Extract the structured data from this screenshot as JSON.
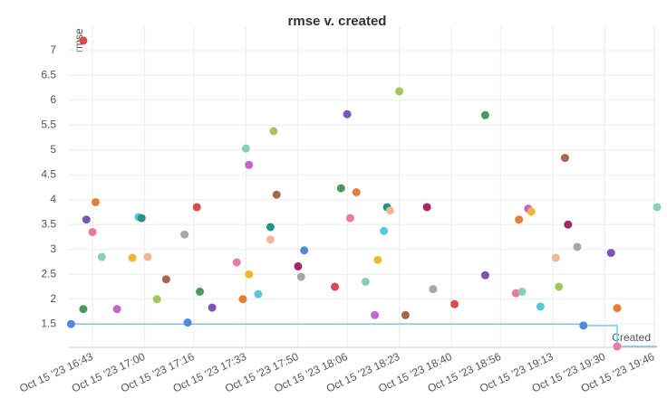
{
  "chart_data": {
    "type": "scatter",
    "title": "rmse v. created",
    "y_label": "rmse",
    "x_label": "Created",
    "x": [
      "2023-10-15T16:36",
      "2023-10-15T16:40",
      "2023-10-15T16:40",
      "2023-10-15T16:41",
      "2023-10-15T16:43",
      "2023-10-15T16:44",
      "2023-10-15T16:46",
      "2023-10-15T16:51",
      "2023-10-15T16:56",
      "2023-10-15T16:58",
      "2023-10-15T16:59",
      "2023-10-15T17:01",
      "2023-10-15T17:04",
      "2023-10-15T17:07",
      "2023-10-15T17:13",
      "2023-10-15T17:14",
      "2023-10-15T17:17",
      "2023-10-15T17:18",
      "2023-10-15T17:22",
      "2023-10-15T17:30",
      "2023-10-15T17:32",
      "2023-10-15T17:33",
      "2023-10-15T17:34",
      "2023-10-15T17:34",
      "2023-10-15T17:37",
      "2023-10-15T17:41",
      "2023-10-15T17:41",
      "2023-10-15T17:42",
      "2023-10-15T17:43",
      "2023-10-15T17:50",
      "2023-10-15T17:51",
      "2023-10-15T17:52",
      "2023-10-15T18:02",
      "2023-10-15T18:04",
      "2023-10-15T18:06",
      "2023-10-15T18:07",
      "2023-10-15T18:09",
      "2023-10-15T18:12",
      "2023-10-15T18:15",
      "2023-10-15T18:16",
      "2023-10-15T18:18",
      "2023-10-15T18:19",
      "2023-10-15T18:20",
      "2023-10-15T18:23",
      "2023-10-15T18:25",
      "2023-10-15T18:32",
      "2023-10-15T18:34",
      "2023-10-15T18:41",
      "2023-10-15T18:51",
      "2023-10-15T18:51",
      "2023-10-15T19:01",
      "2023-10-15T19:02",
      "2023-10-15T19:03",
      "2023-10-15T19:05",
      "2023-10-15T19:06",
      "2023-10-15T19:09",
      "2023-10-15T19:14",
      "2023-10-15T19:15",
      "2023-10-15T19:17",
      "2023-10-15T19:18",
      "2023-10-15T19:21",
      "2023-10-15T19:23",
      "2023-10-15T19:32",
      "2023-10-15T19:34",
      "2023-10-15T19:34",
      "2023-10-15T19:47"
    ],
    "values": [
      1.5,
      7.2,
      1.8,
      3.6,
      3.35,
      3.95,
      2.85,
      1.8,
      2.83,
      3.65,
      3.63,
      2.85,
      2.0,
      2.4,
      3.3,
      1.53,
      3.85,
      2.15,
      1.83,
      2.74,
      2.0,
      5.03,
      4.7,
      2.5,
      2.1,
      3.45,
      3.2,
      5.38,
      4.1,
      2.66,
      2.45,
      2.98,
      2.25,
      4.23,
      5.72,
      3.63,
      4.15,
      2.35,
      1.68,
      2.79,
      3.37,
      3.85,
      3.78,
      6.18,
      1.68,
      3.85,
      2.2,
      1.9,
      5.7,
      2.48,
      2.12,
      3.6,
      2.15,
      3.82,
      3.76,
      1.85,
      2.83,
      2.25,
      4.84,
      3.5,
      3.05,
      1.47,
      2.93,
      1.05,
      1.82,
      3.85
    ],
    "colors": [
      "#5387dd",
      "#da4c4c",
      "#479a5f",
      "#7d54b2",
      "#e87b9f",
      "#e17e3a",
      "#87cebf",
      "#c565c7",
      "#edb732",
      "#5bc5db",
      "#229487",
      "#f0b899",
      "#a0c75c",
      "#a46750",
      "#a1a9ad",
      "#5387dd",
      "#da4c4c",
      "#479a5f",
      "#7d54b2",
      "#e87b9f",
      "#e17e3a",
      "#87cebf",
      "#c565c7",
      "#edb732",
      "#5bc5db",
      "#229487",
      "#f0b899",
      "#a0c75c",
      "#a46750",
      "#a12864",
      "#a1a9ad",
      "#5387dd",
      "#da4c4c",
      "#479a5f",
      "#7d54b2",
      "#e87b9f",
      "#e17e3a",
      "#87cebf",
      "#c565c7",
      "#edb732",
      "#5bc5db",
      "#229487",
      "#f0b899",
      "#a0c75c",
      "#a46750",
      "#a12864",
      "#a1a9ad",
      "#da4c4c",
      "#479a5f",
      "#7d54b2",
      "#e87b9f",
      "#e17e3a",
      "#87cebf",
      "#c565c7",
      "#edb732",
      "#5bc5db",
      "#f0b899",
      "#a0c75c",
      "#a46750",
      "#a12864",
      "#a1a9ad",
      "#5387dd",
      "#7d54b2",
      "#e87b9f",
      "#e17e3a",
      "#87cebf"
    ],
    "line_color": "#7ec8e3",
    "xlim": [
      "2023-10-15T16:35",
      "2023-10-15T19:47"
    ],
    "xticks": [
      {
        "value": "2023-10-15T16:43",
        "label": "Oct 15 '23 16:43"
      },
      {
        "value": "2023-10-15T17:00",
        "label": "Oct 15 '23 17:00"
      },
      {
        "value": "2023-10-15T17:16",
        "label": "Oct 15 '23 17:16"
      },
      {
        "value": "2023-10-15T17:33",
        "label": "Oct 15 '23 17:33"
      },
      {
        "value": "2023-10-15T17:50",
        "label": "Oct 15 '23 17:50"
      },
      {
        "value": "2023-10-15T18:06",
        "label": "Oct 15 '23 18:06"
      },
      {
        "value": "2023-10-15T18:23",
        "label": "Oct 15 '23 18:23"
      },
      {
        "value": "2023-10-15T18:40",
        "label": "Oct 15 '23 18:40"
      },
      {
        "value": "2023-10-15T18:56",
        "label": "Oct 15 '23 18:56"
      },
      {
        "value": "2023-10-15T19:13",
        "label": "Oct 15 '23 19:13"
      },
      {
        "value": "2023-10-15T19:30",
        "label": "Oct 15 '23 19:30"
      },
      {
        "value": "2023-10-15T19:46",
        "label": "Oct 15 '23 19:46"
      }
    ],
    "ylim": [
      1.03,
      7.47
    ],
    "yticks": [
      1.5,
      2,
      2.5,
      3,
      3.5,
      4,
      4.5,
      5,
      5.5,
      6,
      6.5,
      7
    ],
    "grid": true
  }
}
